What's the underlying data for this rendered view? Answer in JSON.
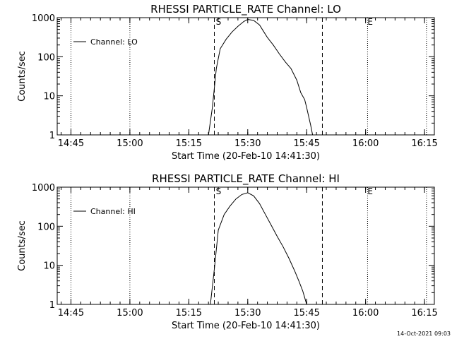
{
  "footer": {
    "timestamp": "14-Oct-2021 09:03"
  },
  "chart_data": [
    {
      "type": "line",
      "title": "RHESSI PARTICLE_RATE Channel: LO",
      "xlabel": "Start Time (20-Feb-10 14:41:30)",
      "ylabel": "Counts/sec",
      "yscale": "log",
      "xlim_min": [
        0,
        96
      ],
      "ylim": [
        1,
        1000
      ],
      "x_ticks": [
        {
          "label": "14:45",
          "min": 3.5
        },
        {
          "label": "15:00",
          "min": 18.5
        },
        {
          "label": "15:15",
          "min": 33.5
        },
        {
          "label": "15:30",
          "min": 48.5
        },
        {
          "label": "15:45",
          "min": 63.5
        },
        {
          "label": "16:00",
          "min": 78.5
        },
        {
          "label": "16:15",
          "min": 93.5
        }
      ],
      "y_ticks": [
        {
          "label": "1",
          "value": 1
        },
        {
          "label": "10",
          "value": 10
        },
        {
          "label": "100",
          "value": 100
        },
        {
          "label": "1000",
          "value": 1000
        }
      ],
      "dotted_lines_min": [
        3.5,
        18.5,
        79,
        94
      ],
      "dashed_lines_min": [
        40,
        67.5
      ],
      "markers": [
        {
          "label": "S",
          "min": 40.2
        },
        {
          "label": "E",
          "min": 78.8
        }
      ],
      "legend": {
        "label": "Channel: LO",
        "position": "top-left"
      },
      "series": [
        {
          "name": "Channel: LO",
          "x": [
            38.5,
            39.5,
            40.5,
            41.5,
            43,
            44.5,
            46,
            47.5,
            48.5,
            50,
            51.5,
            52.5,
            53.5,
            55,
            56.5,
            58,
            59.5,
            61,
            62,
            63,
            63.5,
            64,
            64.5,
            65
          ],
          "y": [
            1,
            5,
            50,
            160,
            280,
            430,
            600,
            800,
            900,
            850,
            650,
            450,
            310,
            200,
            120,
            75,
            50,
            25,
            12,
            8,
            5,
            3,
            1.8,
            1
          ]
        }
      ]
    },
    {
      "type": "line",
      "title": "RHESSI PARTICLE_RATE Channel: HI",
      "xlabel": "Start Time (20-Feb-10 14:41:30)",
      "ylabel": "Counts/sec",
      "yscale": "log",
      "xlim_min": [
        0,
        96
      ],
      "ylim": [
        1,
        1000
      ],
      "x_ticks": [
        {
          "label": "14:45",
          "min": 3.5
        },
        {
          "label": "15:00",
          "min": 18.5
        },
        {
          "label": "15:15",
          "min": 33.5
        },
        {
          "label": "15:30",
          "min": 48.5
        },
        {
          "label": "15:45",
          "min": 63.5
        },
        {
          "label": "16:00",
          "min": 78.5
        },
        {
          "label": "16:15",
          "min": 93.5
        }
      ],
      "y_ticks": [
        {
          "label": "1",
          "value": 1
        },
        {
          "label": "10",
          "value": 10
        },
        {
          "label": "100",
          "value": 100
        },
        {
          "label": "1000",
          "value": 1000
        }
      ],
      "dotted_lines_min": [
        3.5,
        18.5,
        79,
        94
      ],
      "dashed_lines_min": [
        40,
        67.5
      ],
      "markers": [
        {
          "label": "S",
          "min": 40.2
        },
        {
          "label": "E",
          "min": 78.8
        }
      ],
      "legend": {
        "label": "Channel: HI",
        "position": "top-left"
      },
      "series": [
        {
          "name": "Channel: HI",
          "x": [
            39,
            40,
            41,
            42.5,
            44,
            45.5,
            47,
            48.5,
            50,
            51.5,
            53,
            54.5,
            56,
            57.5,
            59,
            60.5,
            61.5,
            62.5,
            63,
            63.5
          ],
          "y": [
            1,
            8,
            80,
            200,
            330,
            500,
            650,
            720,
            600,
            380,
            200,
            105,
            55,
            30,
            15,
            7,
            4,
            2.2,
            1.5,
            1
          ]
        }
      ]
    }
  ]
}
